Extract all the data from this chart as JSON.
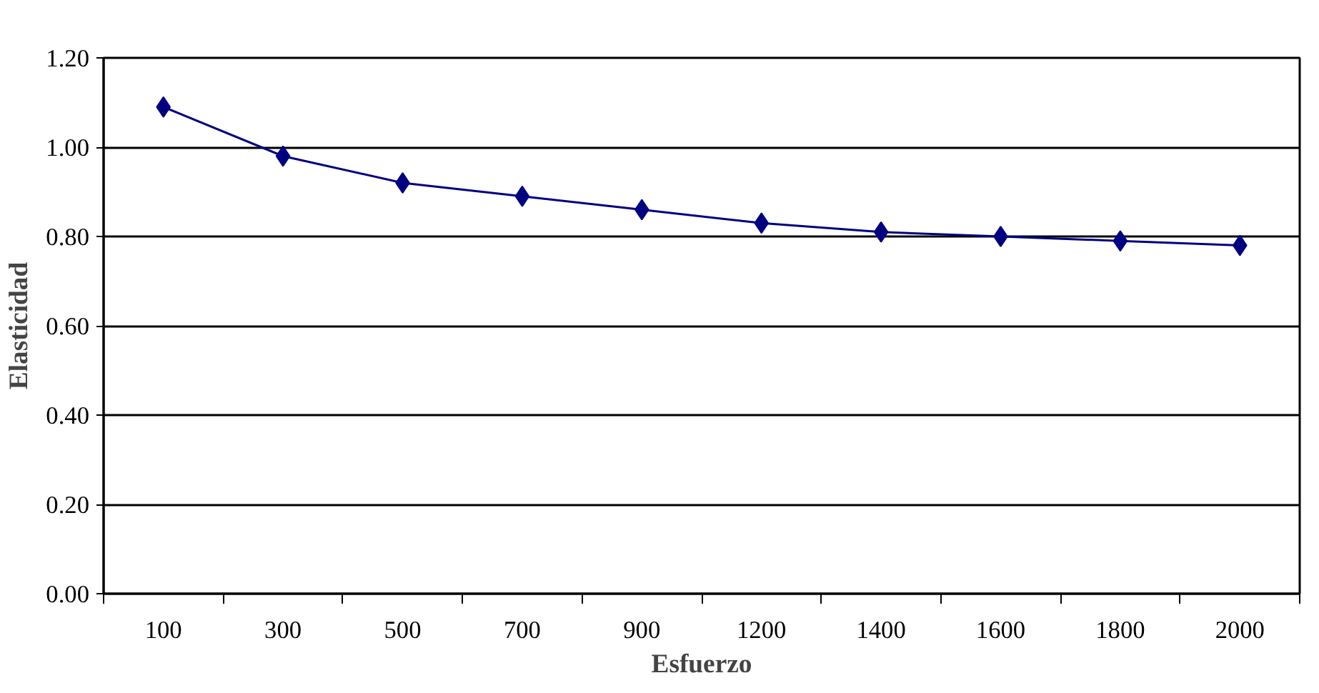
{
  "chart_data": {
    "type": "line",
    "xlabel": "Esfuerzo",
    "ylabel": "Elasticidad",
    "categories": [
      "100",
      "300",
      "500",
      "700",
      "900",
      "1200",
      "1400",
      "1600",
      "1800",
      "2000"
    ],
    "series": [
      {
        "color": "#000080",
        "values": [
          1.09,
          0.98,
          0.92,
          0.89,
          0.86,
          0.83,
          0.81,
          0.8,
          0.79,
          0.78
        ]
      }
    ],
    "ylim": [
      0,
      1.2
    ],
    "yticks": [
      {
        "value": 0,
        "label": "0.00"
      },
      {
        "value": 0.2,
        "label": "0.20"
      },
      {
        "value": 0.4,
        "label": "0.40"
      },
      {
        "value": 0.6,
        "label": "0.60"
      },
      {
        "value": 0.8,
        "label": "0.80"
      },
      {
        "value": 1.0,
        "label": "1.00"
      },
      {
        "value": 1.2,
        "label": "1.20"
      }
    ],
    "grid": "y",
    "marker": "diamond",
    "line_style": "solid"
  }
}
